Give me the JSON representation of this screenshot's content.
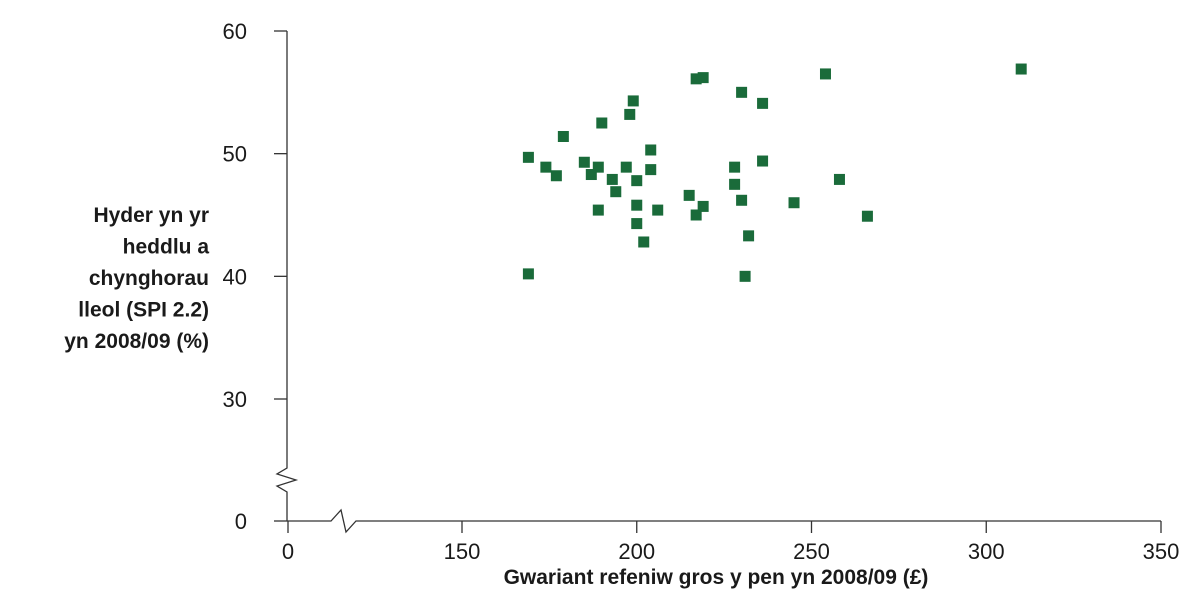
{
  "chart_data": {
    "type": "scatter",
    "title": "",
    "xlabel": "Gwariant refeniw gros y pen yn 2008/09 (£)",
    "ylabel_lines": [
      "Hyder yn yr",
      "heddlu a",
      "chynghorau",
      "lleol (SPI 2.2)",
      "yn 2008/09 (%)"
    ],
    "x_axis": {
      "break_after": 0,
      "ticks": [
        0,
        150,
        200,
        250,
        300,
        350
      ],
      "tick_labels": [
        "0",
        "150",
        "200",
        "250",
        "300",
        "350"
      ]
    },
    "y_axis": {
      "break_after": 0,
      "ticks": [
        0,
        30,
        40,
        50,
        60
      ],
      "tick_labels": [
        "0",
        "30",
        "40",
        "50",
        "60"
      ]
    },
    "marker_color": "#1a6b3a",
    "marker": "square",
    "points": [
      [
        169,
        49.7
      ],
      [
        174,
        48.9
      ],
      [
        177,
        48.2
      ],
      [
        179,
        51.4
      ],
      [
        185,
        49.3
      ],
      [
        187,
        48.3
      ],
      [
        189,
        48.9
      ],
      [
        189,
        45.4
      ],
      [
        190,
        52.5
      ],
      [
        193,
        47.9
      ],
      [
        194,
        46.9
      ],
      [
        197,
        48.9
      ],
      [
        198,
        53.2
      ],
      [
        199,
        54.3
      ],
      [
        200,
        47.8
      ],
      [
        200,
        45.8
      ],
      [
        200,
        44.3
      ],
      [
        202,
        42.8
      ],
      [
        204,
        48.7
      ],
      [
        204,
        50.3
      ],
      [
        206,
        45.4
      ],
      [
        215,
        46.6
      ],
      [
        217,
        45.0
      ],
      [
        217,
        56.1
      ],
      [
        219,
        56.2
      ],
      [
        219,
        45.7
      ],
      [
        228,
        48.9
      ],
      [
        228,
        47.5
      ],
      [
        230,
        46.2
      ],
      [
        230,
        55.0
      ],
      [
        232,
        43.3
      ],
      [
        231,
        40.0
      ],
      [
        236,
        54.1
      ],
      [
        236,
        49.4
      ],
      [
        245,
        46.0
      ],
      [
        254,
        56.5
      ],
      [
        258,
        47.9
      ],
      [
        266,
        44.9
      ],
      [
        310,
        56.9
      ],
      [
        169,
        40.2
      ]
    ]
  }
}
